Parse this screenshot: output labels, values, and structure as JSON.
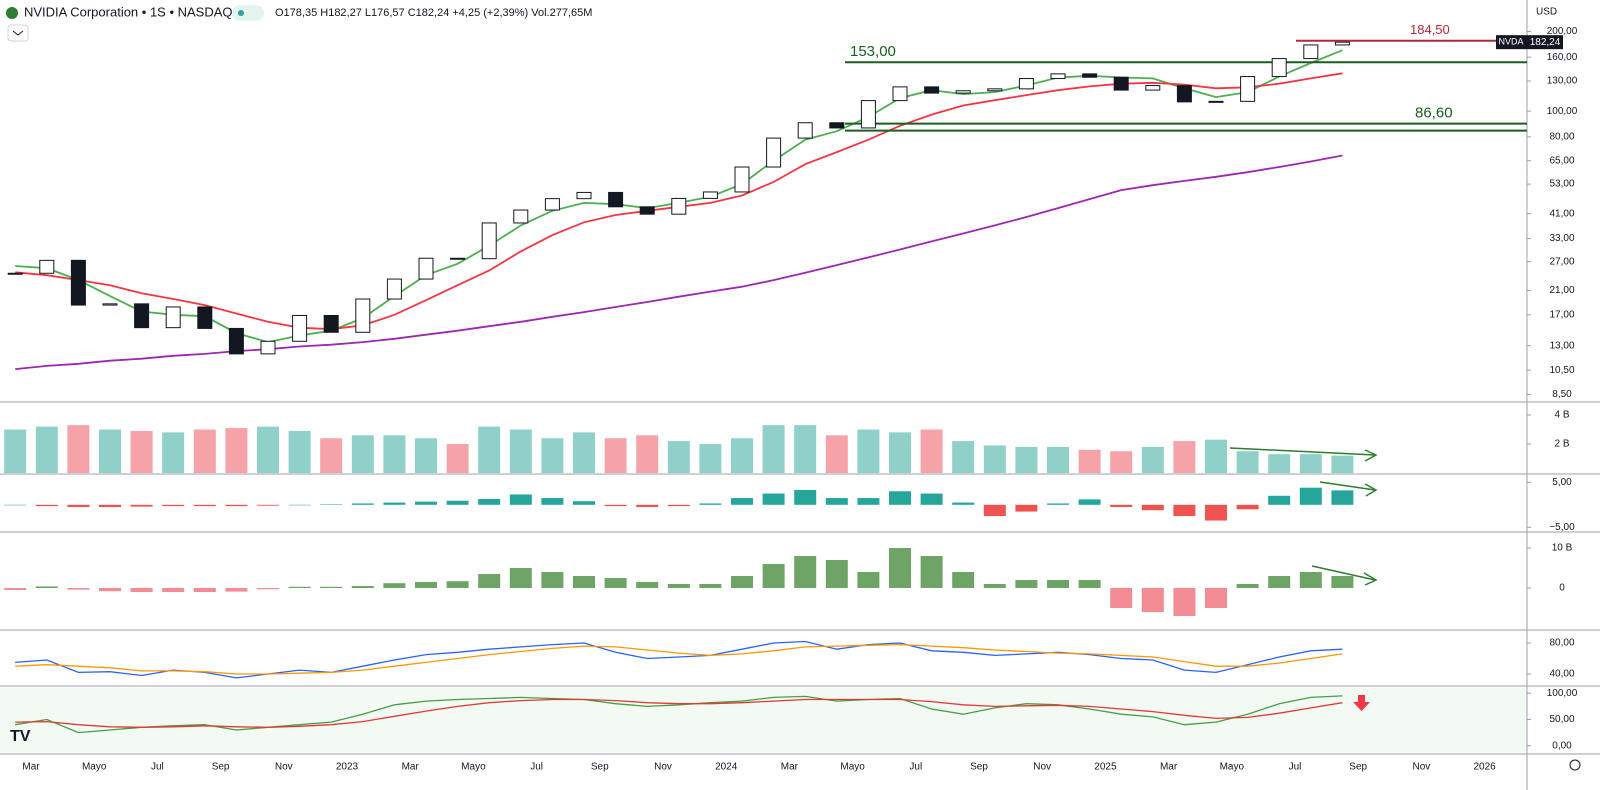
{
  "header": {
    "title": "NVIDIA Corporation • 1S • NASDAQ",
    "ohlc": "O178,35 H182,27 L176,57 C182,24 +4,25 (+2,39%) Vol.277,65M",
    "currency": "USD"
  },
  "chart_data": [
    {
      "type": "candlestick",
      "categories": [
        null,
        "Mar",
        null,
        "Mayo",
        null,
        "Jul",
        null,
        "Sep",
        null,
        "Nov",
        null,
        "2023",
        null,
        "Mar",
        null,
        "Mayo",
        null,
        "Jul",
        null,
        "Sep",
        null,
        "Nov",
        null,
        "2024",
        null,
        "Mar",
        null,
        "Mayo",
        null,
        "Jul",
        null,
        "Sep",
        null,
        "Nov",
        null,
        "2025",
        null,
        "Mar",
        null,
        "Mayo",
        null,
        "Jul",
        null,
        "Sep",
        null,
        "Nov",
        null,
        "2026"
      ],
      "series": [
        {
          "name": "NVDA",
          "color": "#131722",
          "values": [
            24.4,
            27.3,
            18.5,
            18.7,
            15.2,
            18.2,
            15.1,
            12.1,
            13.5,
            16.9,
            14.6,
            19.5,
            23.2,
            27.8,
            27.7,
            37.8,
            42.3,
            46.7,
            49.3,
            43.5,
            40.8,
            46.8,
            49.5,
            61.5,
            79.1,
            90.4,
            86.4,
            109.6,
            123.5,
            117.0,
            119.4,
            121.4,
            132.8,
            138.3,
            134.3,
            120.1,
            124.9,
            108.4,
            108.9,
            135.1,
            158.0,
            177.9,
            182.24,
            null,
            null,
            null,
            null,
            null
          ],
          "value_labels": [
            null,
            null,
            null,
            null,
            null,
            null,
            null,
            null,
            null,
            null,
            null,
            null,
            null,
            null,
            null,
            null,
            null,
            null,
            null,
            null,
            null,
            null,
            null,
            null,
            null,
            null,
            null,
            null,
            null,
            null,
            null,
            null,
            null,
            null,
            null,
            null,
            null,
            null,
            null,
            null,
            null,
            null,
            "182,24",
            null,
            null,
            null,
            null,
            null
          ]
        }
      ],
      "moving_averages": [
        {
          "color": "#4caf50",
          "values": [
            26,
            25.5,
            23,
            20,
            17.5,
            17,
            16.8,
            14.5,
            13.4,
            14.2,
            14.8,
            16.5,
            20,
            24,
            26.5,
            31,
            37,
            42,
            45,
            44.5,
            43,
            45,
            47.5,
            53,
            65,
            78,
            84,
            95,
            112,
            120,
            116,
            118,
            125,
            134,
            136,
            134,
            133,
            122,
            113,
            118,
            135,
            152,
            170,
            null,
            null,
            null,
            null,
            null
          ]
        },
        {
          "color": "#f23645",
          "values": [
            24.6,
            24,
            23,
            22,
            20.5,
            19.5,
            18.5,
            17.2,
            16,
            15.2,
            15,
            15.5,
            17,
            19.3,
            22,
            25,
            29.5,
            34,
            38,
            40.5,
            42,
            43.5,
            45,
            48,
            54,
            63,
            70,
            78,
            88,
            97,
            105,
            110,
            115,
            120,
            124,
            127,
            128,
            126,
            122,
            123,
            127,
            133,
            139,
            null,
            null,
            null,
            null,
            null
          ]
        },
        {
          "color": "#9c27b0",
          "values": [
            10.6,
            10.9,
            11.1,
            11.4,
            11.6,
            11.9,
            12.1,
            12.4,
            12.6,
            12.9,
            13.1,
            13.4,
            13.8,
            14.3,
            14.8,
            15.4,
            16.0,
            16.7,
            17.4,
            18.2,
            19.0,
            19.9,
            20.8,
            21.7,
            23.0,
            24.5,
            26.2,
            28.0,
            30.0,
            32.2,
            34.5,
            37.0,
            39.8,
            43.0,
            46.5,
            50.3,
            52.5,
            54.5,
            56.5,
            58.8,
            61.5,
            64.5,
            68.0,
            null,
            null,
            null,
            null,
            null
          ]
        }
      ],
      "annotations": [
        {
          "label": "153,00",
          "value": 153,
          "color": "#1b5e20"
        },
        {
          "label": "86,60",
          "value": 86.6,
          "color": "#1b5e20"
        },
        {
          "label": "184,50",
          "value": 184.5,
          "color": "#b2283a"
        }
      ],
      "log_scale": true,
      "ylim": [
        8.1,
        221
      ],
      "yticks": [
        {
          "value": 200,
          "label": "200,00"
        },
        {
          "value": 160,
          "label": "160,00"
        },
        {
          "value": 130,
          "label": "130,00"
        },
        {
          "value": 100,
          "label": "100,00"
        },
        {
          "value": 80,
          "label": "80,00"
        },
        {
          "value": 65,
          "label": "65,00"
        },
        {
          "value": 53,
          "label": "53,00"
        },
        {
          "value": 41,
          "label": "41,00"
        },
        {
          "value": 33,
          "label": "33,00"
        },
        {
          "value": 27,
          "label": "27,00"
        },
        {
          "value": 21,
          "label": "21,00"
        },
        {
          "value": 17,
          "label": "17,00"
        },
        {
          "value": 13,
          "label": "13,00"
        },
        {
          "value": 10.5,
          "label": "10,50"
        },
        {
          "value": 8.5,
          "label": "8,50"
        }
      ]
    },
    {
      "type": "bar",
      "color_by": "price",
      "colors": {
        "up": "#8fd1c9",
        "down": "#f5a3a9"
      },
      "values": [
        3.0,
        3.2,
        3.3,
        3.0,
        2.9,
        2.8,
        3.0,
        3.1,
        3.2,
        2.9,
        2.4,
        2.6,
        2.6,
        2.4,
        2.0,
        3.2,
        3.0,
        2.4,
        2.8,
        2.4,
        2.6,
        2.2,
        2.0,
        2.4,
        3.3,
        3.3,
        2.6,
        3.0,
        2.8,
        3.0,
        2.2,
        1.9,
        1.8,
        1.8,
        1.6,
        1.5,
        1.8,
        2.2,
        2.3,
        1.5,
        1.3,
        1.3,
        1.2,
        null,
        null,
        null,
        null,
        null
      ],
      "ylim": [
        0,
        4.69
      ],
      "yticks": [
        {
          "value": 4,
          "label": "4 B"
        },
        {
          "value": 2,
          "label": "2 B"
        }
      ]
    },
    {
      "type": "bar",
      "color_by": "sign",
      "colors": {
        "up": "#26a69a",
        "down": "#ef5350"
      },
      "values": [
        0,
        -0.3,
        -0.5,
        -0.5,
        -0.4,
        -0.3,
        -0.3,
        -0.3,
        -0.2,
        0,
        0.1,
        0.3,
        0.5,
        0.7,
        0.9,
        1.3,
        2.3,
        1.5,
        0.8,
        -0.3,
        -0.5,
        -0.3,
        0.3,
        1.5,
        2.5,
        3.3,
        1.5,
        1.5,
        3.0,
        2.5,
        0.5,
        -2.5,
        -1.5,
        0.3,
        1.2,
        -0.5,
        -1.2,
        -2.5,
        -3.5,
        -1,
        2.0,
        3.8,
        3.2,
        null,
        null,
        null,
        null,
        null
      ],
      "ylim": [
        -5.6,
        6.4
      ],
      "yticks": [
        {
          "value": 5,
          "label": "5,00"
        },
        {
          "value": -5,
          "label": "−5,00"
        }
      ]
    },
    {
      "type": "bar",
      "color_by": "sign",
      "colors": {
        "up": "#6ea566",
        "down": "#f28b92"
      },
      "values": [
        -0.5,
        0.4,
        -0.4,
        -0.8,
        -1.0,
        -1.0,
        -1.0,
        -0.9,
        -0.3,
        0.3,
        0.3,
        0.5,
        1.2,
        1.5,
        1.7,
        3.5,
        5,
        4,
        3,
        2.5,
        1.5,
        1,
        1,
        3,
        6,
        8,
        7,
        4,
        10,
        8,
        4,
        1,
        2,
        2,
        2,
        -5,
        -6,
        -7,
        -5,
        1,
        3,
        4,
        3,
        null,
        null,
        null,
        null,
        null
      ],
      "ylim": [
        -10,
        13.25
      ],
      "yticks": [
        {
          "value": 10,
          "label": "10 B"
        },
        0
      ]
    },
    {
      "type": "line",
      "series": [
        {
          "color": "#2962ff",
          "values": [
            55,
            58,
            42,
            43,
            38,
            45,
            42,
            35,
            40,
            45,
            42,
            50,
            58,
            65,
            68,
            72,
            75,
            78,
            80,
            68,
            60,
            62,
            64,
            72,
            80,
            82,
            72,
            78,
            80,
            70,
            68,
            64,
            66,
            68,
            65,
            60,
            58,
            45,
            42,
            52,
            62,
            70,
            72,
            null,
            null,
            null,
            null,
            null
          ]
        },
        {
          "color": "#ff9800",
          "values": [
            50,
            52,
            50,
            48,
            44,
            44,
            43,
            40,
            40,
            41,
            42,
            45,
            50,
            55,
            60,
            65,
            69,
            73,
            76,
            75,
            71,
            67,
            64,
            66,
            70,
            75,
            76,
            77,
            78,
            76,
            74,
            71,
            69,
            67,
            66,
            64,
            62,
            56,
            50,
            50,
            54,
            60,
            66,
            null,
            null,
            null,
            null,
            null
          ]
        }
      ],
      "ylim": [
        25.8,
        94.2
      ],
      "yticks": [
        {
          "value": 80,
          "label": "80,00"
        },
        {
          "value": 40,
          "label": "40,00"
        }
      ]
    },
    {
      "type": "line",
      "series": [
        {
          "color": "#43a047",
          "values": [
            40,
            50,
            25,
            30,
            35,
            38,
            40,
            30,
            35,
            40,
            45,
            60,
            78,
            85,
            88,
            90,
            92,
            90,
            88,
            80,
            75,
            78,
            82,
            85,
            92,
            94,
            85,
            88,
            90,
            70,
            60,
            72,
            80,
            78,
            70,
            60,
            55,
            40,
            45,
            60,
            80,
            92,
            95,
            null,
            null,
            null,
            null,
            null
          ]
        },
        {
          "color": "#e53935",
          "values": [
            45,
            46,
            40,
            36,
            35,
            36,
            38,
            36,
            35,
            37,
            40,
            46,
            56,
            66,
            75,
            82,
            86,
            88,
            88,
            86,
            82,
            80,
            80,
            82,
            85,
            88,
            88,
            88,
            88,
            84,
            78,
            75,
            76,
            77,
            75,
            70,
            65,
            58,
            52,
            54,
            62,
            72,
            82,
            null,
            null,
            null,
            null,
            null
          ]
        }
      ],
      "ylim": [
        -12,
        110
      ],
      "yticks": [
        {
          "value": 100,
          "label": "100,00"
        },
        {
          "value": 50,
          "label": "50,00"
        },
        {
          "value": 0,
          "label": "0,00"
        }
      ]
    }
  ]
}
